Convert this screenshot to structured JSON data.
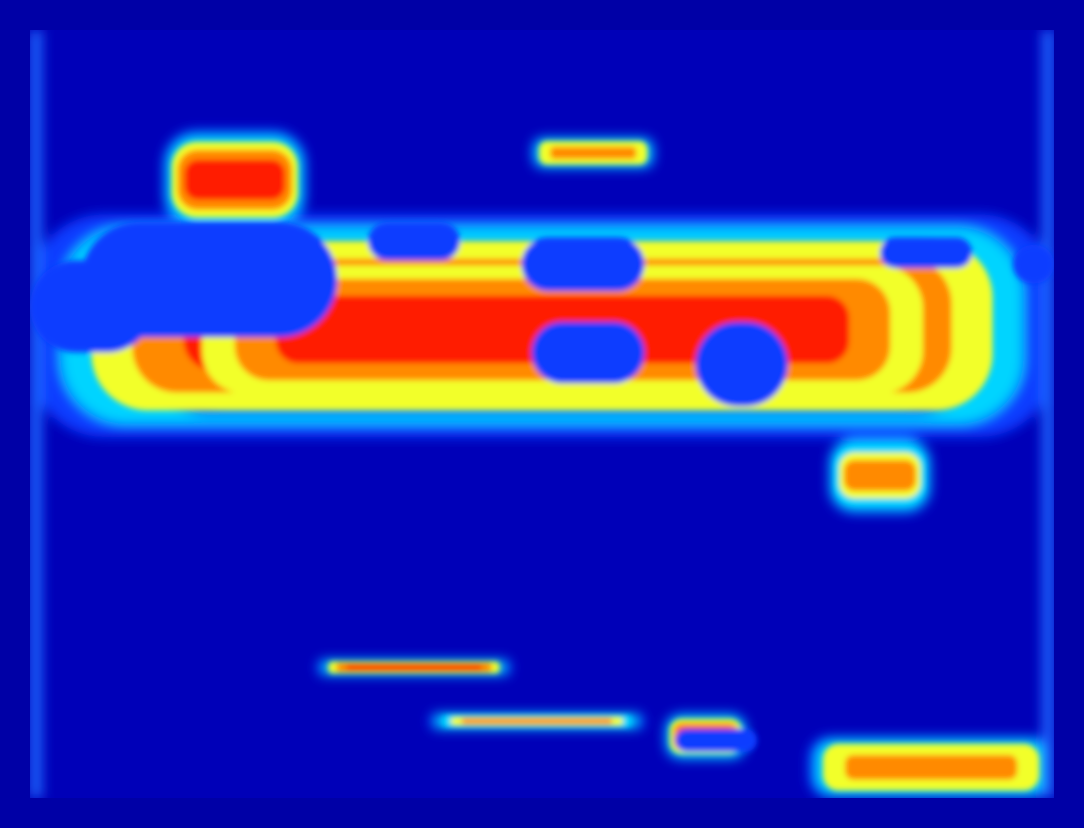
{
  "chart_data": {
    "type": "heatmap",
    "title": "",
    "xlabel": "",
    "ylabel": "",
    "colormap": "jet",
    "colorbar": false,
    "axes_visible": false,
    "grid": false,
    "background_color": "#0000a6",
    "colors": {
      "low": "#0000b0",
      "low_mid": "#0a3cff",
      "mid": "#00d4ff",
      "mid_high": "#f2ff2a",
      "high": "#ff8a00",
      "peak": "#ff1a00"
    },
    "intensity_regions": [
      {
        "id": "upper-band",
        "level": 0.9,
        "x_range": [
          0.0,
          1.0
        ],
        "y_range": [
          0.24,
          0.53
        ]
      },
      {
        "id": "upper-band-core",
        "level": 0.98,
        "x_range": [
          0.12,
          0.92
        ],
        "y_range": [
          0.28,
          0.5
        ]
      },
      {
        "id": "top-spike",
        "level": 0.85,
        "x_range": [
          0.13,
          0.27
        ],
        "y_range": [
          0.13,
          0.26
        ]
      },
      {
        "id": "top-dots",
        "level": 0.8,
        "x_range": [
          0.49,
          0.61
        ],
        "y_range": [
          0.14,
          0.18
        ]
      },
      {
        "id": "mid-plume",
        "level": 0.7,
        "x_range": [
          0.78,
          0.88
        ],
        "y_range": [
          0.53,
          0.63
        ]
      },
      {
        "id": "lower-streak-1",
        "level": 0.85,
        "x_range": [
          0.28,
          0.47
        ],
        "y_range": [
          0.82,
          0.84
        ]
      },
      {
        "id": "lower-streak-2",
        "level": 0.75,
        "x_range": [
          0.39,
          0.6
        ],
        "y_range": [
          0.89,
          0.91
        ]
      },
      {
        "id": "lower-blob",
        "level": 0.95,
        "x_range": [
          0.62,
          0.7
        ],
        "y_range": [
          0.89,
          0.95
        ]
      },
      {
        "id": "bottom-right-spots",
        "level": 0.8,
        "x_range": [
          0.76,
          1.0
        ],
        "y_range": [
          0.92,
          1.0
        ]
      }
    ],
    "saturated_holes": [
      {
        "x_range": [
          0.05,
          0.3
        ],
        "y_range": [
          0.25,
          0.4
        ]
      },
      {
        "x_range": [
          0.0,
          0.12
        ],
        "y_range": [
          0.3,
          0.42
        ]
      },
      {
        "x_range": [
          0.33,
          0.42
        ],
        "y_range": [
          0.25,
          0.3
        ]
      },
      {
        "x_range": [
          0.48,
          0.6
        ],
        "y_range": [
          0.27,
          0.34
        ]
      },
      {
        "x_range": [
          0.49,
          0.6
        ],
        "y_range": [
          0.38,
          0.46
        ]
      },
      {
        "x_range": [
          0.65,
          0.74
        ],
        "y_range": [
          0.38,
          0.49
        ]
      },
      {
        "x_range": [
          0.83,
          0.92
        ],
        "y_range": [
          0.27,
          0.31
        ]
      },
      {
        "x_range": [
          0.96,
          1.0
        ],
        "y_range": [
          0.28,
          0.33
        ]
      },
      {
        "x_range": [
          0.63,
          0.71
        ],
        "y_range": [
          0.91,
          0.94
        ]
      }
    ]
  }
}
